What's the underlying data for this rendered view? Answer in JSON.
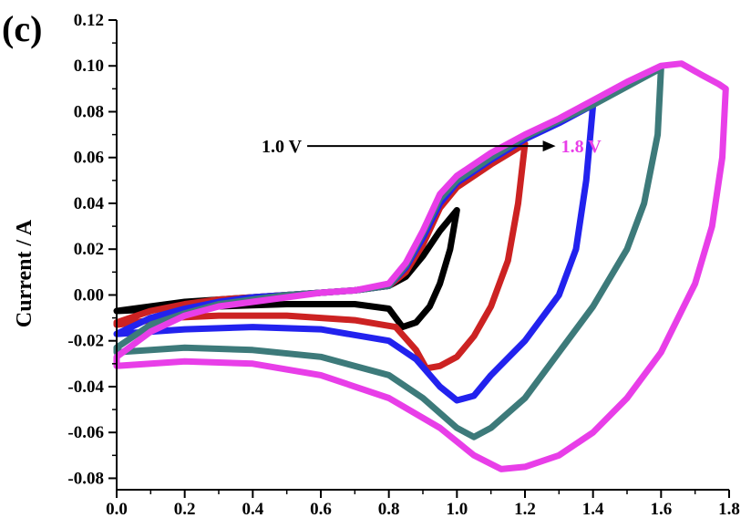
{
  "chart_data": {
    "type": "line",
    "panel_label": "(c)",
    "title": "",
    "xlabel": "",
    "ylabel": "Current / A",
    "xlim": [
      0.0,
      1.8
    ],
    "ylim": [
      -0.085,
      0.12
    ],
    "x_ticks": [
      "0.0",
      "0.2",
      "0.4",
      "0.6",
      "0.8",
      "1.0",
      "1.2",
      "1.4",
      "1.6",
      "1.8"
    ],
    "x_tick_values": [
      0.0,
      0.2,
      0.4,
      0.6,
      0.8,
      1.0,
      1.2,
      1.4,
      1.6,
      1.8
    ],
    "y_ticks": [
      "-0.08",
      "-0.06",
      "-0.04",
      "-0.02",
      "0.00",
      "0.02",
      "0.04",
      "0.06",
      "0.08",
      "0.10",
      "0.12"
    ],
    "y_tick_values": [
      -0.08,
      -0.06,
      -0.04,
      -0.02,
      0.0,
      0.02,
      0.04,
      0.06,
      0.08,
      0.1,
      0.12
    ],
    "grid": false,
    "annotation": {
      "start_label": "1.0 V",
      "end_label": "1.8 V",
      "start_color": "#000000",
      "end_color": "#e83ee8",
      "arrow_from": [
        0.56,
        0.065
      ],
      "arrow_to": [
        1.29,
        0.065
      ]
    },
    "series": [
      {
        "color": "#000000",
        "points": [
          [
            0.0,
            -0.007
          ],
          [
            0.1,
            -0.005
          ],
          [
            0.2,
            -0.003
          ],
          [
            0.3,
            -0.002
          ],
          [
            0.4,
            -0.001
          ],
          [
            0.5,
            0.0
          ],
          [
            0.6,
            0.001
          ],
          [
            0.7,
            0.002
          ],
          [
            0.8,
            0.004
          ],
          [
            0.85,
            0.008
          ],
          [
            0.9,
            0.017
          ],
          [
            0.95,
            0.028
          ],
          [
            1.0,
            0.037
          ],
          [
            0.98,
            0.02
          ],
          [
            0.95,
            0.005
          ],
          [
            0.92,
            -0.005
          ],
          [
            0.88,
            -0.012
          ],
          [
            0.84,
            -0.014
          ],
          [
            0.8,
            -0.006
          ],
          [
            0.7,
            -0.004
          ],
          [
            0.5,
            -0.004
          ],
          [
            0.3,
            -0.005
          ],
          [
            0.15,
            -0.006
          ],
          [
            0.0,
            -0.007
          ]
        ]
      },
      {
        "color": "#cc2222",
        "points": [
          [
            0.0,
            -0.012
          ],
          [
            0.1,
            -0.007
          ],
          [
            0.2,
            -0.004
          ],
          [
            0.3,
            -0.002
          ],
          [
            0.4,
            -0.001
          ],
          [
            0.5,
            0.0
          ],
          [
            0.6,
            0.001
          ],
          [
            0.7,
            0.002
          ],
          [
            0.8,
            0.004
          ],
          [
            0.85,
            0.01
          ],
          [
            0.9,
            0.022
          ],
          [
            0.95,
            0.038
          ],
          [
            1.0,
            0.047
          ],
          [
            1.1,
            0.057
          ],
          [
            1.2,
            0.066
          ],
          [
            1.18,
            0.04
          ],
          [
            1.15,
            0.015
          ],
          [
            1.1,
            -0.005
          ],
          [
            1.05,
            -0.018
          ],
          [
            1.0,
            -0.027
          ],
          [
            0.95,
            -0.031
          ],
          [
            0.91,
            -0.032
          ],
          [
            0.88,
            -0.024
          ],
          [
            0.82,
            -0.014
          ],
          [
            0.7,
            -0.011
          ],
          [
            0.5,
            -0.009
          ],
          [
            0.3,
            -0.009
          ],
          [
            0.15,
            -0.01
          ],
          [
            0.0,
            -0.013
          ]
        ]
      },
      {
        "color": "#2222ee",
        "points": [
          [
            0.0,
            -0.017
          ],
          [
            0.1,
            -0.01
          ],
          [
            0.2,
            -0.006
          ],
          [
            0.3,
            -0.003
          ],
          [
            0.4,
            -0.001
          ],
          [
            0.5,
            0.0
          ],
          [
            0.6,
            0.001
          ],
          [
            0.7,
            0.002
          ],
          [
            0.8,
            0.004
          ],
          [
            0.85,
            0.012
          ],
          [
            0.9,
            0.025
          ],
          [
            0.95,
            0.04
          ],
          [
            1.0,
            0.049
          ],
          [
            1.1,
            0.059
          ],
          [
            1.2,
            0.068
          ],
          [
            1.3,
            0.075
          ],
          [
            1.4,
            0.083
          ],
          [
            1.38,
            0.05
          ],
          [
            1.35,
            0.02
          ],
          [
            1.3,
            0.0
          ],
          [
            1.2,
            -0.02
          ],
          [
            1.1,
            -0.035
          ],
          [
            1.05,
            -0.044
          ],
          [
            1.0,
            -0.046
          ],
          [
            0.95,
            -0.04
          ],
          [
            0.88,
            -0.028
          ],
          [
            0.8,
            -0.02
          ],
          [
            0.6,
            -0.015
          ],
          [
            0.4,
            -0.014
          ],
          [
            0.2,
            -0.015
          ],
          [
            0.0,
            -0.017
          ]
        ]
      },
      {
        "color": "#3d7a7a",
        "points": [
          [
            0.0,
            -0.023
          ],
          [
            0.1,
            -0.013
          ],
          [
            0.2,
            -0.008
          ],
          [
            0.3,
            -0.004
          ],
          [
            0.4,
            -0.002
          ],
          [
            0.5,
            0.0
          ],
          [
            0.6,
            0.001
          ],
          [
            0.7,
            0.002
          ],
          [
            0.8,
            0.004
          ],
          [
            0.85,
            0.013
          ],
          [
            0.9,
            0.027
          ],
          [
            0.95,
            0.042
          ],
          [
            1.0,
            0.05
          ],
          [
            1.1,
            0.06
          ],
          [
            1.2,
            0.069
          ],
          [
            1.3,
            0.076
          ],
          [
            1.4,
            0.083
          ],
          [
            1.5,
            0.091
          ],
          [
            1.6,
            0.099
          ],
          [
            1.59,
            0.07
          ],
          [
            1.55,
            0.04
          ],
          [
            1.5,
            0.02
          ],
          [
            1.4,
            -0.005
          ],
          [
            1.3,
            -0.025
          ],
          [
            1.2,
            -0.045
          ],
          [
            1.1,
            -0.058
          ],
          [
            1.05,
            -0.062
          ],
          [
            1.0,
            -0.058
          ],
          [
            0.9,
            -0.045
          ],
          [
            0.8,
            -0.035
          ],
          [
            0.6,
            -0.027
          ],
          [
            0.4,
            -0.024
          ],
          [
            0.2,
            -0.023
          ],
          [
            0.0,
            -0.025
          ]
        ]
      },
      {
        "color": "#e83ee8",
        "points": [
          [
            0.0,
            -0.027
          ],
          [
            0.1,
            -0.016
          ],
          [
            0.2,
            -0.009
          ],
          [
            0.3,
            -0.005
          ],
          [
            0.4,
            -0.003
          ],
          [
            0.5,
            -0.001
          ],
          [
            0.6,
            0.001
          ],
          [
            0.7,
            0.002
          ],
          [
            0.8,
            0.005
          ],
          [
            0.85,
            0.014
          ],
          [
            0.9,
            0.028
          ],
          [
            0.95,
            0.044
          ],
          [
            1.0,
            0.052
          ],
          [
            1.1,
            0.062
          ],
          [
            1.2,
            0.07
          ],
          [
            1.3,
            0.077
          ],
          [
            1.4,
            0.085
          ],
          [
            1.5,
            0.093
          ],
          [
            1.6,
            0.1
          ],
          [
            1.66,
            0.101
          ],
          [
            1.72,
            0.096
          ],
          [
            1.77,
            0.092
          ],
          [
            1.79,
            0.09
          ],
          [
            1.78,
            0.06
          ],
          [
            1.75,
            0.03
          ],
          [
            1.7,
            0.005
          ],
          [
            1.6,
            -0.025
          ],
          [
            1.5,
            -0.045
          ],
          [
            1.4,
            -0.06
          ],
          [
            1.3,
            -0.07
          ],
          [
            1.2,
            -0.075
          ],
          [
            1.13,
            -0.076
          ],
          [
            1.05,
            -0.07
          ],
          [
            0.95,
            -0.058
          ],
          [
            0.8,
            -0.045
          ],
          [
            0.6,
            -0.035
          ],
          [
            0.4,
            -0.03
          ],
          [
            0.2,
            -0.029
          ],
          [
            0.0,
            -0.031
          ]
        ]
      }
    ]
  }
}
